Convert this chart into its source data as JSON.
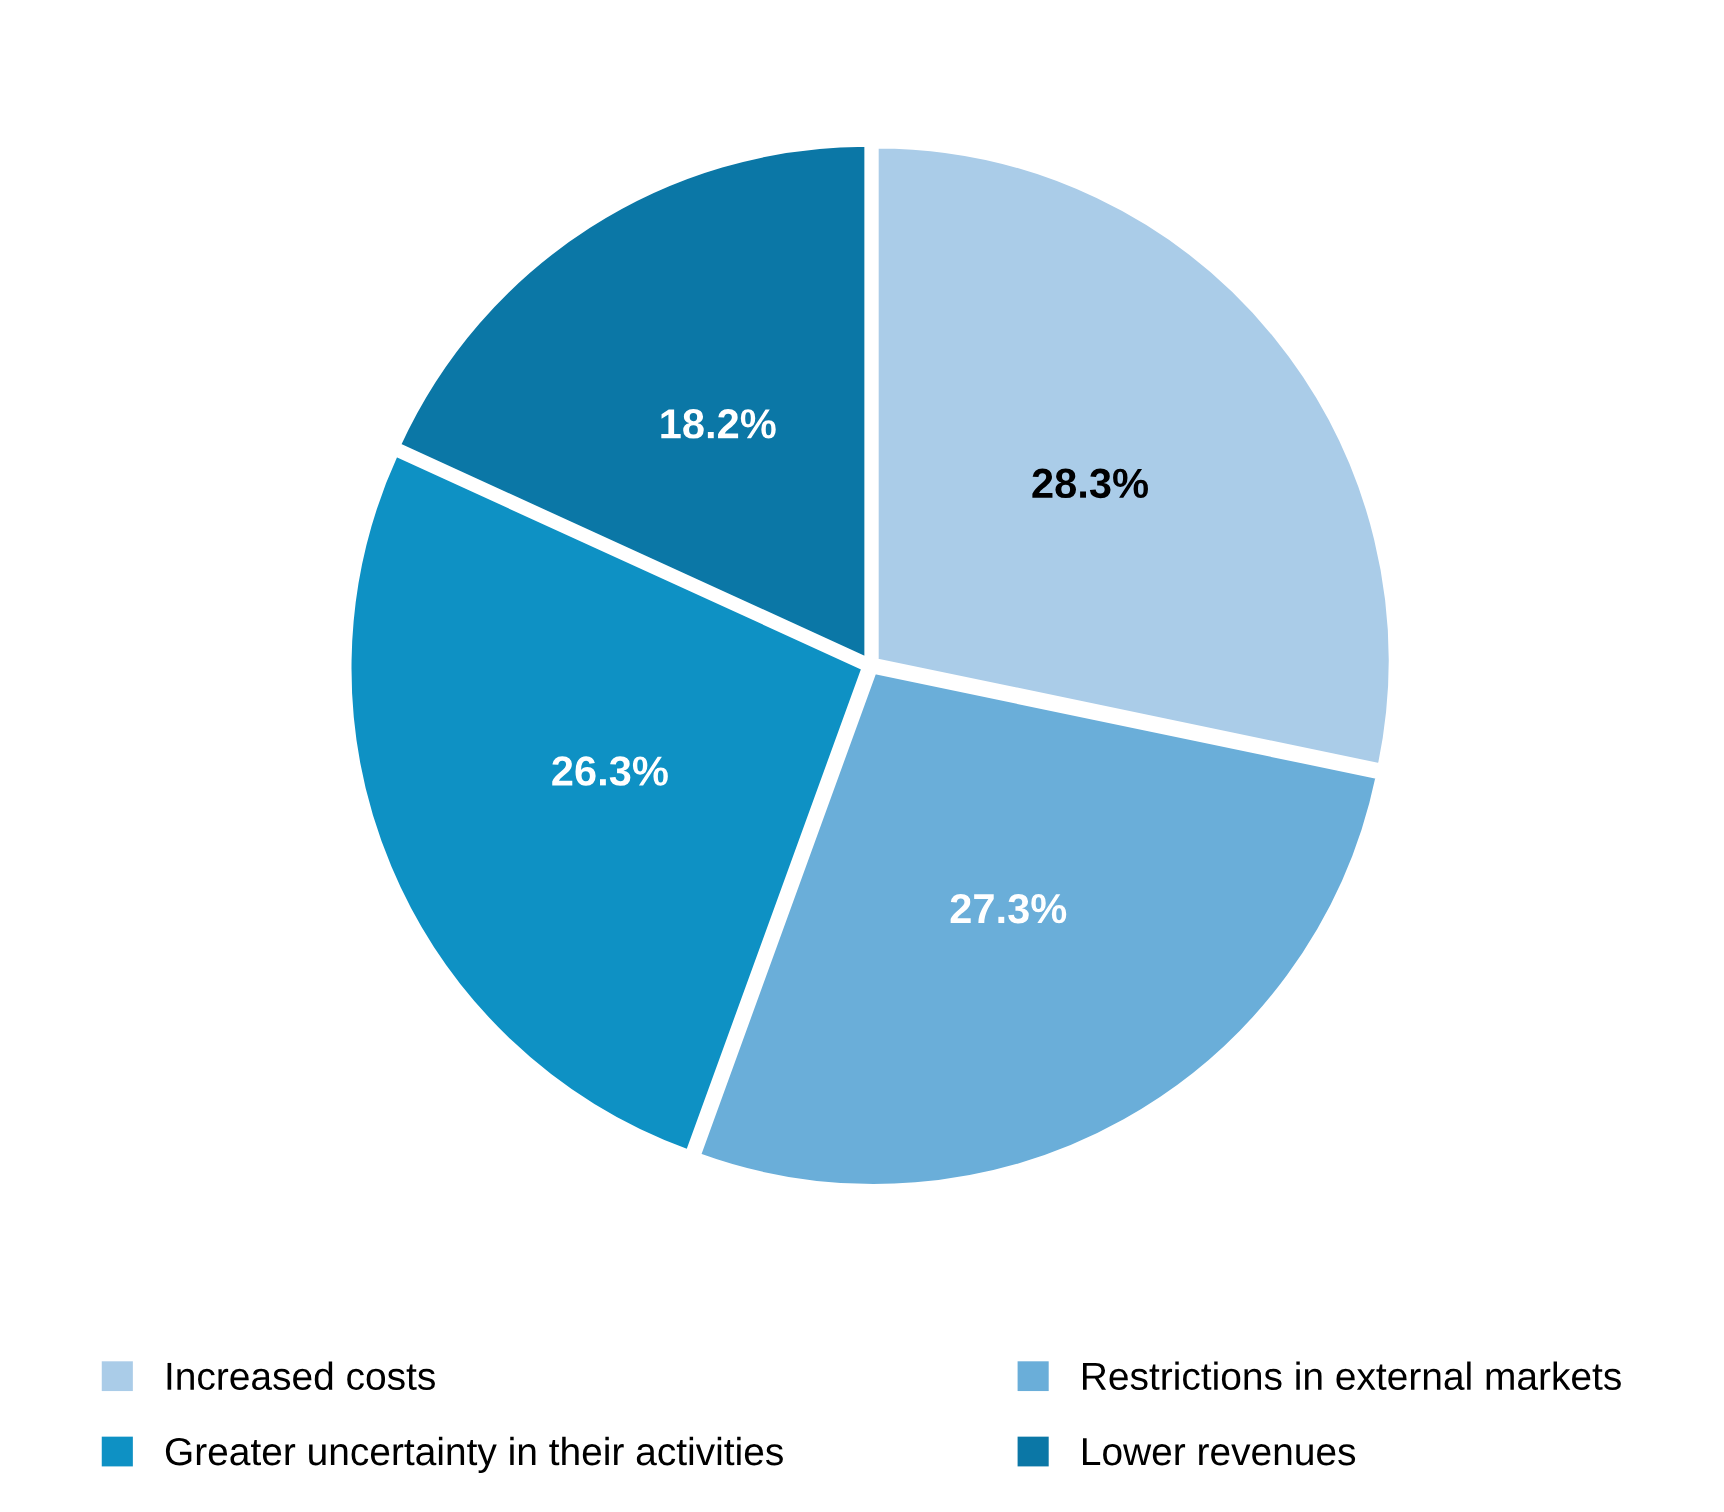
{
  "chart_data": {
    "type": "pie",
    "categories": [
      "Increased costs",
      "Restrictions in external markets",
      "Greater uncertainty in their activities",
      "Lower revenues"
    ],
    "values": [
      28.3,
      27.3,
      26.3,
      18.2
    ],
    "colors": [
      "#aacce8",
      "#6aaed9",
      "#0e91c4",
      "#0b77a6"
    ],
    "value_labels": [
      "28.3%",
      "27.3%",
      "26.3%",
      "18.2%"
    ],
    "legend": "bottom"
  }
}
